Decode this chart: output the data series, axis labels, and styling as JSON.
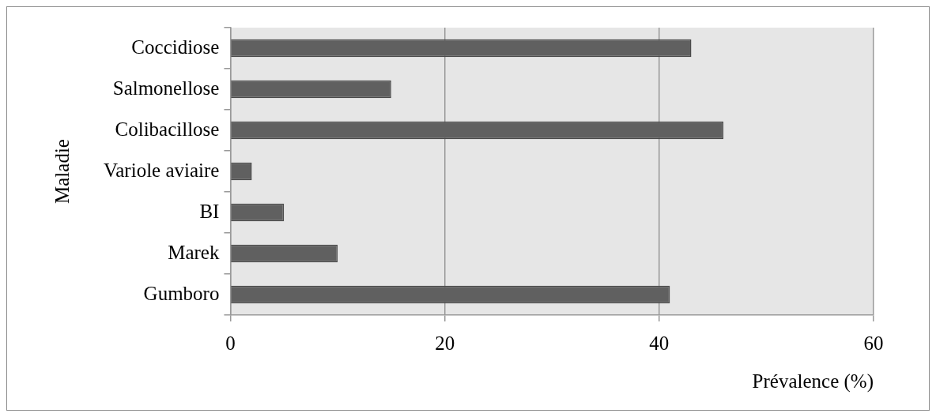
{
  "chart_data": {
    "type": "bar",
    "orientation": "horizontal",
    "categories": [
      "Coccidiose",
      "Salmonellose",
      "Colibacillose",
      "Variole aviaire",
      "BI",
      "Marek",
      "Gumboro"
    ],
    "values": [
      43,
      15,
      46,
      2,
      5,
      10,
      41
    ],
    "color": "#606060",
    "xlim": [
      0,
      60
    ],
    "xticks": [
      0,
      20,
      40,
      60
    ],
    "xlabel": "Prévalence (%)",
    "ylabel": "Maladie",
    "grid": "x",
    "legend": false
  }
}
